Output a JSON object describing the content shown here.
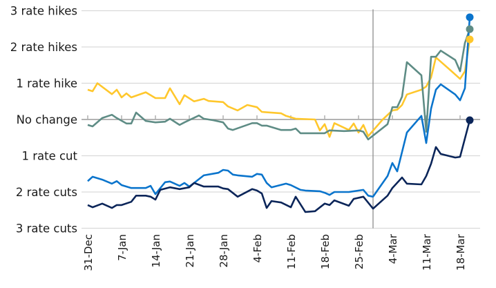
{
  "chart_data": {
    "type": "line",
    "title": "",
    "xlabel": "",
    "ylabel": "",
    "y_range": [
      -3,
      3
    ],
    "y_ticks": [
      {
        "value": 3,
        "label": "3 rate hikes"
      },
      {
        "value": 2,
        "label": "2 rate hikes"
      },
      {
        "value": 1,
        "label": "1 rate hike"
      },
      {
        "value": 0,
        "label": "No change"
      },
      {
        "value": -1,
        "label": "1 rate cut"
      },
      {
        "value": -2,
        "label": "2 rate cuts"
      },
      {
        "value": -3,
        "label": "3 rate cuts"
      }
    ],
    "x_ticks": [
      "31-Dec",
      "7-Jan",
      "14-Jan",
      "21-Jan",
      "28-Jan",
      "4-Feb",
      "11-Feb",
      "18-Feb",
      "25-Feb",
      "4-Mar",
      "11-Mar",
      "18-Mar"
    ],
    "grid": "horizontal",
    "legend": "none",
    "vertical_marker": "28-Feb",
    "series": [
      {
        "color": "#FFC72C",
        "points": [
          [
            "31-Dec",
            0.82
          ],
          [
            "1-Jan",
            0.78
          ],
          [
            "2-Jan",
            1.0
          ],
          [
            "5-Jan",
            0.7
          ],
          [
            "6-Jan",
            0.82
          ],
          [
            "7-Jan",
            0.61
          ],
          [
            "8-Jan",
            0.72
          ],
          [
            "9-Jan",
            0.61
          ],
          [
            "12-Jan",
            0.75
          ],
          [
            "14-Jan",
            0.59
          ],
          [
            "16-Jan",
            0.59
          ],
          [
            "17-Jan",
            0.86
          ],
          [
            "19-Jan",
            0.42
          ],
          [
            "20-Jan",
            0.67
          ],
          [
            "22-Jan",
            0.5
          ],
          [
            "24-Jan",
            0.57
          ],
          [
            "25-Jan",
            0.51
          ],
          [
            "28-Jan",
            0.48
          ],
          [
            "29-Jan",
            0.36
          ],
          [
            "31-Jan",
            0.25
          ],
          [
            "2-Feb",
            0.4
          ],
          [
            "4-Feb",
            0.34
          ],
          [
            "5-Feb",
            0.21
          ],
          [
            "9-Feb",
            0.17
          ],
          [
            "10-Feb",
            0.1
          ],
          [
            "12-Feb",
            0.02
          ],
          [
            "16-Feb",
            0.0
          ],
          [
            "17-Feb",
            -0.3
          ],
          [
            "18-Feb",
            -0.13
          ],
          [
            "19-Feb",
            -0.48
          ],
          [
            "20-Feb",
            -0.1
          ],
          [
            "23-Feb",
            -0.29
          ],
          [
            "24-Feb",
            -0.11
          ],
          [
            "25-Feb",
            -0.36
          ],
          [
            "26-Feb",
            -0.15
          ],
          [
            "27-Feb",
            -0.46
          ],
          [
            "2-Mar",
            0.0
          ],
          [
            "4-Mar",
            0.25
          ],
          [
            "5-Mar",
            0.27
          ],
          [
            "6-Mar",
            0.4
          ],
          [
            "7-Mar",
            0.69
          ],
          [
            "10-Mar",
            0.82
          ],
          [
            "11-Mar",
            0.91
          ],
          [
            "12-Mar",
            1.16
          ],
          [
            "13-Mar",
            1.71
          ],
          [
            "16-Mar",
            1.36
          ],
          [
            "18-Mar",
            1.12
          ],
          [
            "19-Mar",
            1.33
          ],
          [
            "20-Mar",
            2.21
          ]
        ]
      },
      {
        "color": "#5E8C85",
        "points": [
          [
            "31-Dec",
            -0.15
          ],
          [
            "1-Jan",
            -0.19
          ],
          [
            "3-Jan",
            0.04
          ],
          [
            "5-Jan",
            0.13
          ],
          [
            "6-Jan",
            0.04
          ],
          [
            "8-Jan",
            -0.11
          ],
          [
            "9-Jan",
            -0.11
          ],
          [
            "10-Jan",
            0.19
          ],
          [
            "12-Jan",
            -0.04
          ],
          [
            "14-Jan",
            -0.08
          ],
          [
            "16-Jan",
            -0.06
          ],
          [
            "17-Jan",
            0.02
          ],
          [
            "19-Jan",
            -0.15
          ],
          [
            "20-Jan",
            -0.08
          ],
          [
            "23-Jan",
            0.11
          ],
          [
            "24-Jan",
            0.02
          ],
          [
            "26-Jan",
            -0.02
          ],
          [
            "28-Jan",
            -0.08
          ],
          [
            "29-Jan",
            -0.25
          ],
          [
            "30-Jan",
            -0.29
          ],
          [
            "3-Feb",
            -0.1
          ],
          [
            "4-Feb",
            -0.1
          ],
          [
            "5-Feb",
            -0.17
          ],
          [
            "6-Feb",
            -0.17
          ],
          [
            "9-Feb",
            -0.29
          ],
          [
            "11-Feb",
            -0.29
          ],
          [
            "12-Feb",
            -0.25
          ],
          [
            "13-Feb",
            -0.38
          ],
          [
            "18-Feb",
            -0.38
          ],
          [
            "19-Feb",
            -0.3
          ],
          [
            "22-Feb",
            -0.32
          ],
          [
            "25-Feb",
            -0.3
          ],
          [
            "26-Feb",
            -0.34
          ],
          [
            "27-Feb",
            -0.55
          ],
          [
            "3-Mar",
            -0.13
          ],
          [
            "4-Mar",
            0.34
          ],
          [
            "5-Mar",
            0.34
          ],
          [
            "6-Mar",
            0.63
          ],
          [
            "7-Mar",
            1.58
          ],
          [
            "10-Mar",
            1.22
          ],
          [
            "11-Mar",
            -0.34
          ],
          [
            "12-Mar",
            1.73
          ],
          [
            "13-Mar",
            1.73
          ],
          [
            "14-Mar",
            1.9
          ],
          [
            "17-Mar",
            1.64
          ],
          [
            "18-Mar",
            1.33
          ],
          [
            "19-Mar",
            2.11
          ],
          [
            "20-Mar",
            2.49
          ]
        ]
      },
      {
        "color": "#0A74CC",
        "points": [
          [
            "31-Dec",
            -1.7
          ],
          [
            "1-Jan",
            -1.58
          ],
          [
            "3-Jan",
            -1.66
          ],
          [
            "5-Jan",
            -1.77
          ],
          [
            "6-Jan",
            -1.7
          ],
          [
            "7-Jan",
            -1.81
          ],
          [
            "9-Jan",
            -1.89
          ],
          [
            "12-Jan",
            -1.89
          ],
          [
            "13-Jan",
            -1.83
          ],
          [
            "14-Jan",
            -2.06
          ],
          [
            "16-Jan",
            -1.73
          ],
          [
            "17-Jan",
            -1.71
          ],
          [
            "19-Jan",
            -1.83
          ],
          [
            "20-Jan",
            -1.75
          ],
          [
            "21-Jan",
            -1.85
          ],
          [
            "22-Jan",
            -1.75
          ],
          [
            "24-Jan",
            -1.54
          ],
          [
            "27-Jan",
            -1.47
          ],
          [
            "28-Jan",
            -1.39
          ],
          [
            "29-Jan",
            -1.41
          ],
          [
            "30-Jan",
            -1.52
          ],
          [
            "31-Jan",
            -1.54
          ],
          [
            "3-Feb",
            -1.58
          ],
          [
            "4-Feb",
            -1.5
          ],
          [
            "5-Feb",
            -1.52
          ],
          [
            "6-Feb",
            -1.75
          ],
          [
            "7-Feb",
            -1.87
          ],
          [
            "10-Feb",
            -1.77
          ],
          [
            "11-Feb",
            -1.81
          ],
          [
            "13-Feb",
            -1.94
          ],
          [
            "14-Feb",
            -1.96
          ],
          [
            "17-Feb",
            -1.98
          ],
          [
            "18-Feb",
            -2.02
          ],
          [
            "19-Feb",
            -2.08
          ],
          [
            "20-Feb",
            -2.0
          ],
          [
            "23-Feb",
            -2.0
          ],
          [
            "26-Feb",
            -1.94
          ],
          [
            "27-Feb",
            -2.1
          ],
          [
            "28-Feb",
            -2.13
          ],
          [
            "3-Mar",
            -1.56
          ],
          [
            "4-Mar",
            -1.2
          ],
          [
            "5-Mar",
            -1.43
          ],
          [
            "7-Mar",
            -0.36
          ],
          [
            "10-Mar",
            0.1
          ],
          [
            "11-Mar",
            -0.65
          ],
          [
            "12-Mar",
            0.3
          ],
          [
            "13-Mar",
            0.82
          ],
          [
            "14-Mar",
            0.97
          ],
          [
            "17-Mar",
            0.69
          ],
          [
            "18-Mar",
            0.53
          ],
          [
            "19-Mar",
            0.86
          ],
          [
            "20-Mar",
            2.82
          ]
        ]
      },
      {
        "color": "#0B2559",
        "points": [
          [
            "31-Dec",
            -2.36
          ],
          [
            "1-Jan",
            -2.42
          ],
          [
            "3-Jan",
            -2.32
          ],
          [
            "5-Jan",
            -2.44
          ],
          [
            "6-Jan",
            -2.36
          ],
          [
            "7-Jan",
            -2.36
          ],
          [
            "9-Jan",
            -2.27
          ],
          [
            "10-Jan",
            -2.1
          ],
          [
            "12-Jan",
            -2.1
          ],
          [
            "13-Jan",
            -2.13
          ],
          [
            "14-Jan",
            -2.21
          ],
          [
            "15-Jan",
            -1.94
          ],
          [
            "17-Jan",
            -1.87
          ],
          [
            "19-Jan",
            -1.92
          ],
          [
            "21-Jan",
            -1.87
          ],
          [
            "22-Jan",
            -1.75
          ],
          [
            "24-Jan",
            -1.85
          ],
          [
            "27-Jan",
            -1.85
          ],
          [
            "28-Jan",
            -1.9
          ],
          [
            "29-Jan",
            -1.92
          ],
          [
            "31-Jan",
            -2.13
          ],
          [
            "3-Feb",
            -1.92
          ],
          [
            "4-Feb",
            -1.96
          ],
          [
            "5-Feb",
            -2.04
          ],
          [
            "6-Feb",
            -2.44
          ],
          [
            "7-Feb",
            -2.25
          ],
          [
            "9-Feb",
            -2.29
          ],
          [
            "11-Feb",
            -2.42
          ],
          [
            "12-Feb",
            -2.13
          ],
          [
            "14-Feb",
            -2.55
          ],
          [
            "16-Feb",
            -2.53
          ],
          [
            "18-Feb",
            -2.32
          ],
          [
            "19-Feb",
            -2.36
          ],
          [
            "20-Feb",
            -2.23
          ],
          [
            "23-Feb",
            -2.38
          ],
          [
            "24-Feb",
            -2.19
          ],
          [
            "26-Feb",
            -2.13
          ],
          [
            "28-Feb",
            -2.46
          ],
          [
            "3-Mar",
            -2.1
          ],
          [
            "4-Mar",
            -1.89
          ],
          [
            "6-Mar",
            -1.6
          ],
          [
            "7-Mar",
            -1.77
          ],
          [
            "10-Mar",
            -1.79
          ],
          [
            "11-Mar",
            -1.56
          ],
          [
            "12-Mar",
            -1.22
          ],
          [
            "13-Mar",
            -0.76
          ],
          [
            "14-Mar",
            -0.95
          ],
          [
            "17-Mar",
            -1.05
          ],
          [
            "18-Mar",
            -1.03
          ],
          [
            "20-Mar",
            -0.02
          ]
        ]
      }
    ]
  }
}
